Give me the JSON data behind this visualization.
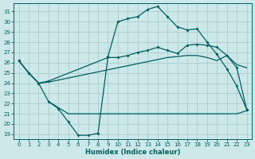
{
  "xlabel": "Humidex (Indice chaleur)",
  "background_color": "#cce8e8",
  "grid_color": "#aacccc",
  "line_color": "#005f5f",
  "xlim": [
    -0.5,
    23.5
  ],
  "ylim": [
    18.5,
    31.8
  ],
  "xticks": [
    0,
    1,
    2,
    3,
    4,
    5,
    6,
    7,
    8,
    9,
    10,
    11,
    12,
    13,
    14,
    15,
    16,
    17,
    18,
    19,
    20,
    21,
    22,
    23
  ],
  "yticks": [
    19,
    20,
    21,
    22,
    23,
    24,
    25,
    26,
    27,
    28,
    29,
    30,
    31
  ],
  "curve_arch_x": [
    0,
    1,
    2,
    3,
    4,
    5,
    6,
    7,
    8,
    9,
    10,
    11,
    12,
    13,
    14,
    15,
    16,
    17,
    18,
    19,
    20,
    21,
    22,
    23
  ],
  "curve_arch_y": [
    26.2,
    25.0,
    24.0,
    22.2,
    21.5,
    20.2,
    18.9,
    18.9,
    19.1,
    26.6,
    30.0,
    30.3,
    30.5,
    31.2,
    31.5,
    30.5,
    29.5,
    29.2,
    29.3,
    28.0,
    26.8,
    25.4,
    23.7,
    21.4
  ],
  "curve_upper_x": [
    0,
    1,
    2,
    3,
    9,
    10,
    11,
    12,
    13,
    14,
    15,
    16,
    17,
    18,
    19,
    20,
    21,
    22,
    23
  ],
  "curve_upper_y": [
    26.2,
    25.0,
    24.0,
    24.2,
    26.5,
    26.5,
    26.7,
    27.0,
    27.2,
    27.5,
    27.2,
    26.9,
    27.7,
    27.8,
    27.7,
    27.5,
    26.7,
    25.5,
    21.4
  ],
  "curve_lin_x": [
    0,
    1,
    2,
    3,
    4,
    5,
    6,
    7,
    8,
    9,
    10,
    11,
    12,
    13,
    14,
    15,
    16,
    17,
    18,
    19,
    20,
    21,
    22,
    23
  ],
  "curve_lin_y": [
    26.2,
    25.0,
    24.0,
    24.1,
    24.3,
    24.5,
    24.7,
    24.9,
    25.1,
    25.3,
    25.5,
    25.7,
    25.9,
    26.1,
    26.3,
    26.5,
    26.6,
    26.7,
    26.7,
    26.5,
    26.2,
    26.7,
    25.8,
    25.5
  ],
  "curve_flat_x": [
    3,
    4,
    5,
    6,
    7,
    8,
    9,
    10,
    11,
    12,
    13,
    14,
    15,
    16,
    17,
    18,
    19,
    20,
    21,
    22,
    23
  ],
  "curve_flat_y": [
    22.2,
    21.6,
    21.0,
    21.0,
    21.0,
    21.0,
    21.0,
    21.0,
    21.0,
    21.0,
    21.0,
    21.0,
    21.0,
    21.0,
    21.0,
    21.0,
    21.0,
    21.0,
    21.0,
    21.0,
    21.3
  ]
}
